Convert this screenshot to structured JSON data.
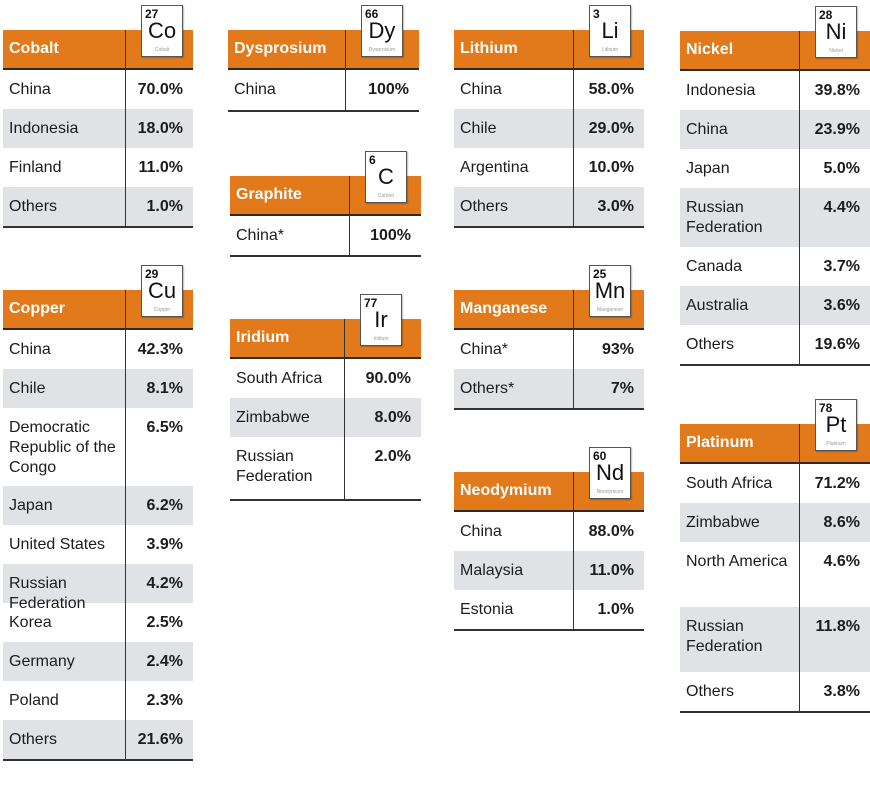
{
  "tables": [
    {
      "key": "cobalt",
      "name": "Cobalt",
      "element": {
        "number": "27",
        "symbol": "Co",
        "label": "Cobalt"
      },
      "rows": [
        [
          "China",
          "70.0%"
        ],
        [
          "Indonesia",
          "18.0%"
        ],
        [
          "Finland",
          "11.0%"
        ],
        [
          "Others",
          "1.0%"
        ]
      ]
    },
    {
      "key": "copper",
      "name": "Copper",
      "element": {
        "number": "29",
        "symbol": "Cu",
        "label": "Copper"
      },
      "rows": [
        [
          "China",
          "42.3%"
        ],
        [
          "Chile",
          "8.1%"
        ],
        [
          "Democratic Republic of the Congo",
          "6.5%"
        ],
        [
          "Japan",
          "6.2%"
        ],
        [
          "United States",
          "3.9%"
        ],
        [
          "Russian Federation",
          "4.2%"
        ],
        [
          "Korea",
          "2.5%"
        ],
        [
          "Germany",
          "2.4%"
        ],
        [
          "Poland",
          "2.3%"
        ],
        [
          "Others",
          "21.6%"
        ]
      ]
    },
    {
      "key": "dysprosium",
      "name": "Dysprosium",
      "element": {
        "number": "66",
        "symbol": "Dy",
        "label": "Dysprosium"
      },
      "rows": [
        [
          "China",
          "100%"
        ]
      ]
    },
    {
      "key": "graphite",
      "name": "Graphite",
      "element": {
        "number": "6",
        "symbol": "C",
        "label": "Carbon"
      },
      "rows": [
        [
          "China*",
          "100%"
        ]
      ]
    },
    {
      "key": "iridium",
      "name": "Iridium",
      "element": {
        "number": "77",
        "symbol": "Ir",
        "label": "Iridium"
      },
      "rows": [
        [
          "South Africa",
          "90.0%"
        ],
        [
          "Zimbabwe",
          "8.0%"
        ],
        [
          "Russian Federation",
          "2.0%"
        ]
      ]
    },
    {
      "key": "lithium",
      "name": "Lithium",
      "element": {
        "number": "3",
        "symbol": "Li",
        "label": "Lithium"
      },
      "rows": [
        [
          "China",
          "58.0%"
        ],
        [
          "Chile",
          "29.0%"
        ],
        [
          "Argentina",
          "10.0%"
        ],
        [
          "Others",
          "3.0%"
        ]
      ]
    },
    {
      "key": "manganese",
      "name": "Manganese",
      "element": {
        "number": "25",
        "symbol": "Mn",
        "label": "Manganese"
      },
      "rows": [
        [
          "China*",
          "93%"
        ],
        [
          "Others*",
          "7%"
        ]
      ]
    },
    {
      "key": "neodymium",
      "name": "Neodymium",
      "element": {
        "number": "60",
        "symbol": "Nd",
        "label": "Neodymium"
      },
      "rows": [
        [
          "China",
          "88.0%"
        ],
        [
          "Malaysia",
          "11.0%"
        ],
        [
          "Estonia",
          "1.0%"
        ]
      ]
    },
    {
      "key": "nickel",
      "name": "Nickel",
      "element": {
        "number": "28",
        "symbol": "Ni",
        "label": "Nickel"
      },
      "rows": [
        [
          "Indonesia",
          "39.8%"
        ],
        [
          "China",
          "23.9%"
        ],
        [
          "Japan",
          "5.0%"
        ],
        [
          "Russian Federation",
          "4.4%"
        ],
        [
          "Canada",
          "3.7%"
        ],
        [
          "Australia",
          "3.6%"
        ],
        [
          "Others",
          "19.6%"
        ]
      ]
    },
    {
      "key": "platinum",
      "name": "Platinum",
      "element": {
        "number": "78",
        "symbol": "Pt",
        "label": "Platinum"
      },
      "rows": [
        [
          "South Africa",
          "71.2%"
        ],
        [
          "Zimbabwe",
          "8.6%"
        ],
        [
          "North America",
          "4.6%"
        ],
        [
          "Russian Federation",
          "11.8%"
        ],
        [
          "Others",
          "3.8%"
        ]
      ]
    }
  ]
}
